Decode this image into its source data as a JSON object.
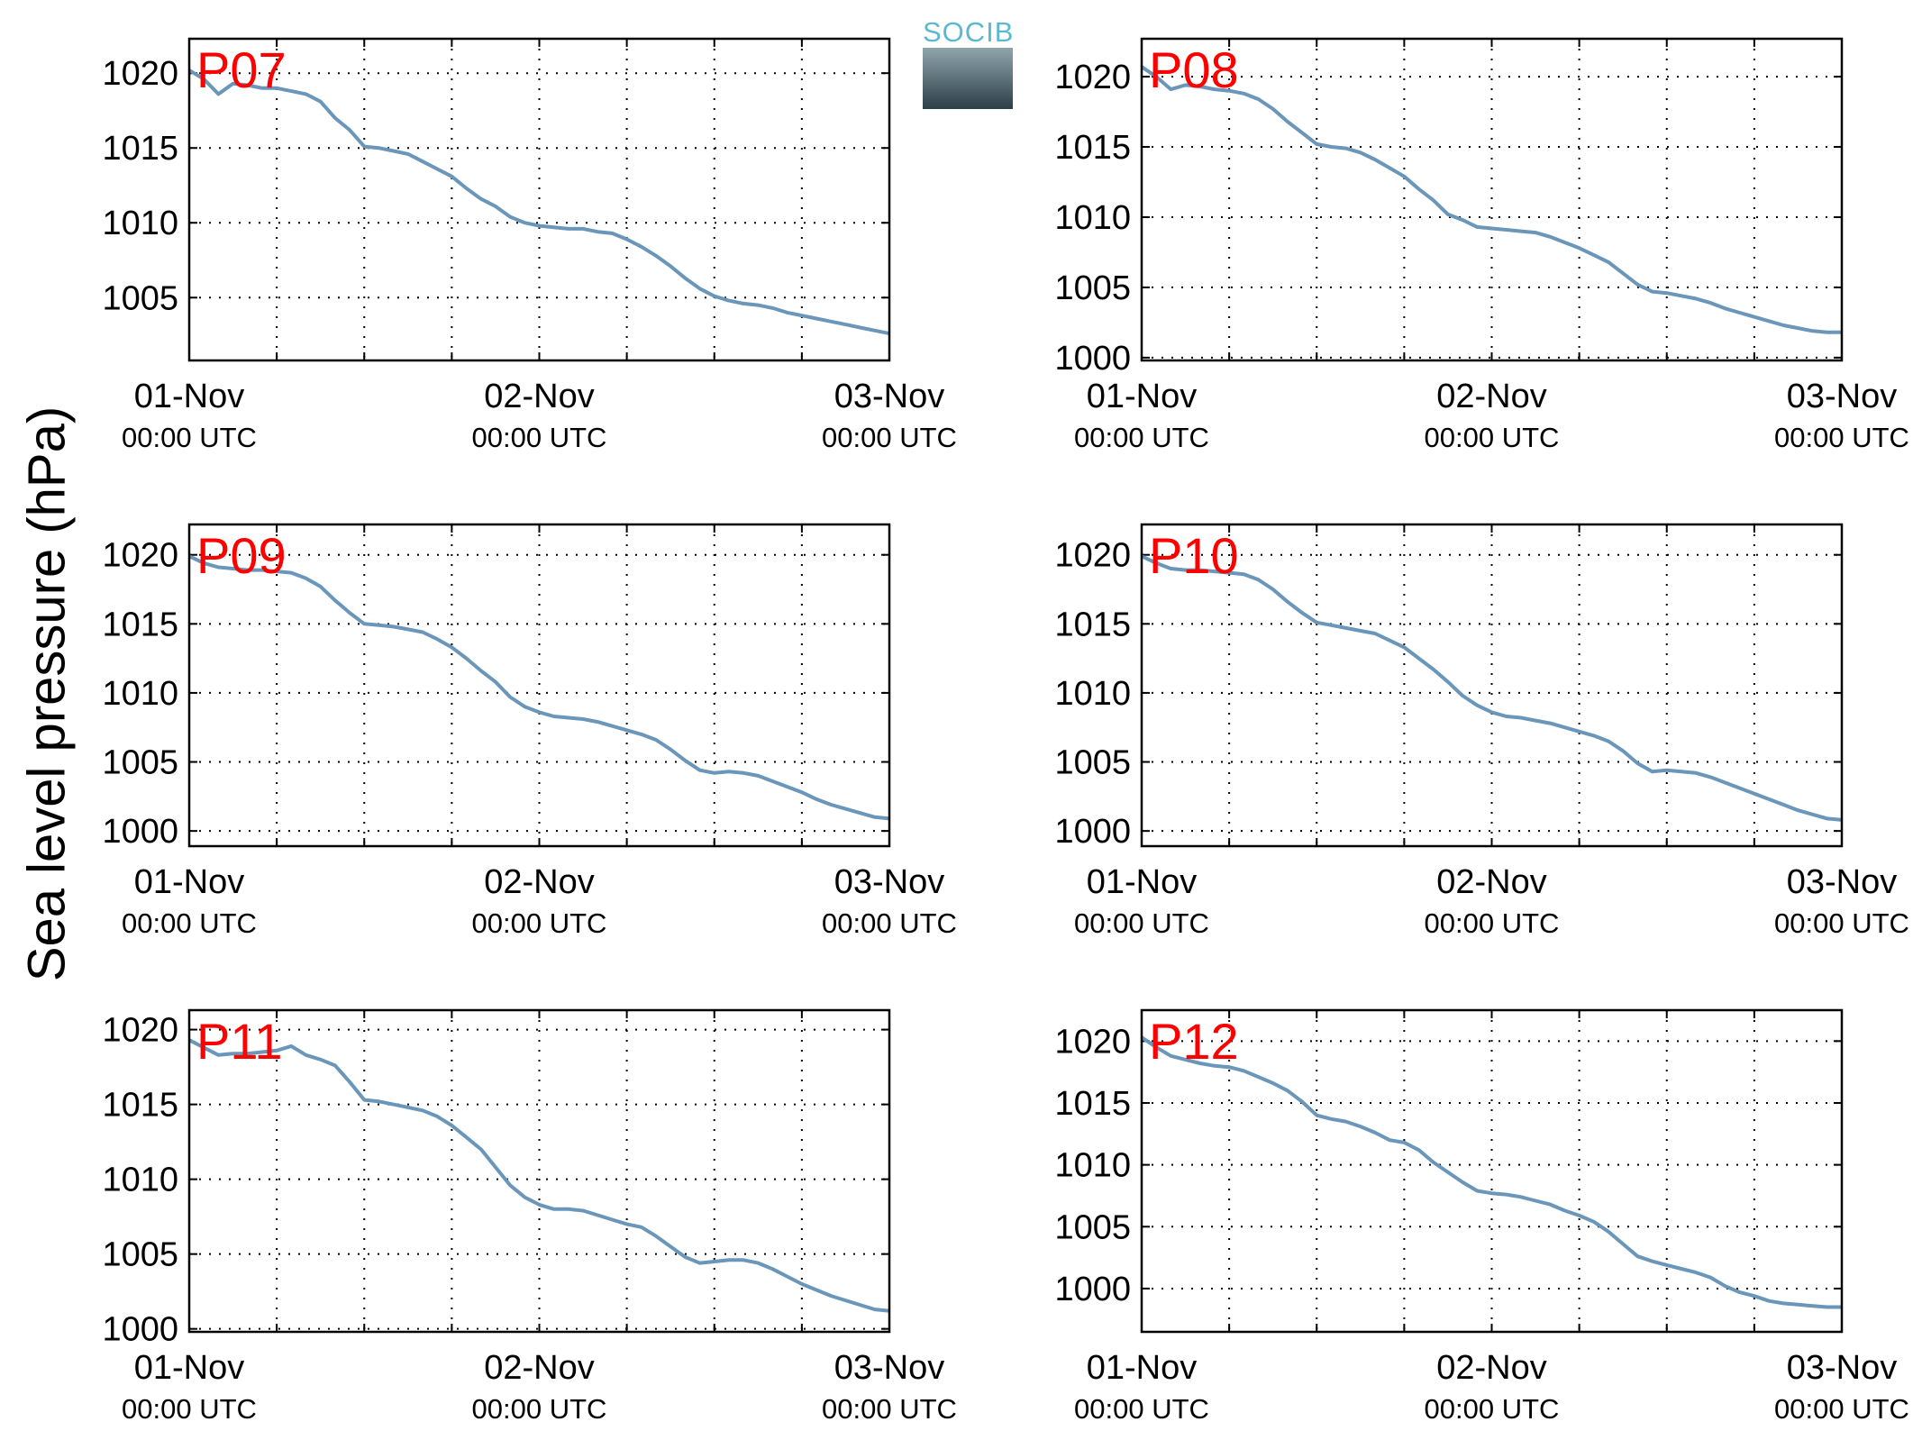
{
  "figure": {
    "ylabel": "Sea level pressure (hPa)",
    "logo_text": "SOCIB",
    "colors": {
      "line": "#6a96ba",
      "station_label": "#ff0000",
      "axis": "#000000",
      "grid": "#000000"
    }
  },
  "chart_data": [
    {
      "type": "line",
      "title": "P07",
      "xlabel": "",
      "ylabel": "",
      "x_ticks": [
        {
          "major": "01-Nov",
          "minor": "00:00 UTC"
        },
        {
          "major": "02-Nov",
          "minor": "00:00 UTC"
        },
        {
          "major": "03-Nov",
          "minor": "00:00 UTC"
        }
      ],
      "xlim": [
        0,
        48
      ],
      "ylim": [
        1000.8,
        1022.3
      ],
      "yticks": [
        1005,
        1010,
        1015,
        1020
      ],
      "grid": true,
      "series": [
        {
          "x": [
            0,
            1,
            2,
            3,
            4,
            5,
            6,
            7,
            8,
            9,
            10,
            11,
            12,
            13,
            14,
            15,
            16,
            17,
            18,
            19,
            20,
            21,
            22,
            23,
            24,
            25,
            26,
            27,
            28,
            29,
            30,
            31,
            32,
            33,
            34,
            35,
            36,
            37,
            38,
            39,
            40,
            41,
            42,
            43,
            44,
            45,
            46,
            47,
            48
          ],
          "y": [
            1020.2,
            1019.6,
            1018.6,
            1019.3,
            1019.2,
            1019.0,
            1019.0,
            1018.8,
            1018.6,
            1018.1,
            1017.0,
            1016.2,
            1015.1,
            1015.0,
            1014.8,
            1014.6,
            1014.1,
            1013.6,
            1013.1,
            1012.3,
            1011.6,
            1011.1,
            1010.4,
            1010.0,
            1009.8,
            1009.7,
            1009.6,
            1009.6,
            1009.4,
            1009.3,
            1008.9,
            1008.4,
            1007.8,
            1007.1,
            1006.3,
            1005.6,
            1005.1,
            1004.8,
            1004.6,
            1004.5,
            1004.3,
            1004.0,
            1003.8,
            1003.6,
            1003.4,
            1003.2,
            1003.0,
            1002.8,
            1002.6
          ]
        }
      ]
    },
    {
      "type": "line",
      "title": "P08",
      "xlabel": "",
      "ylabel": "",
      "x_ticks": [
        {
          "major": "01-Nov",
          "minor": "00:00 UTC"
        },
        {
          "major": "02-Nov",
          "minor": "00:00 UTC"
        },
        {
          "major": "03-Nov",
          "minor": "00:00 UTC"
        }
      ],
      "xlim": [
        0,
        48
      ],
      "ylim": [
        999.8,
        1022.7
      ],
      "yticks": [
        1000,
        1005,
        1010,
        1015,
        1020
      ],
      "grid": true,
      "series": [
        {
          "x": [
            0,
            1,
            2,
            3,
            4,
            5,
            6,
            7,
            8,
            9,
            10,
            11,
            12,
            13,
            14,
            15,
            16,
            17,
            18,
            19,
            20,
            21,
            22,
            23,
            24,
            25,
            26,
            27,
            28,
            29,
            30,
            31,
            32,
            33,
            34,
            35,
            36,
            37,
            38,
            39,
            40,
            41,
            42,
            43,
            44,
            45,
            46,
            47,
            48
          ],
          "y": [
            1020.7,
            1020.0,
            1019.1,
            1019.4,
            1019.3,
            1019.1,
            1019.0,
            1018.8,
            1018.4,
            1017.7,
            1016.8,
            1016.0,
            1015.2,
            1015.0,
            1014.9,
            1014.6,
            1014.1,
            1013.5,
            1012.9,
            1012.0,
            1011.2,
            1010.2,
            1009.8,
            1009.3,
            1009.2,
            1009.1,
            1009.0,
            1008.9,
            1008.6,
            1008.2,
            1007.8,
            1007.3,
            1006.8,
            1006.0,
            1005.2,
            1004.7,
            1004.6,
            1004.4,
            1004.2,
            1003.9,
            1003.5,
            1003.2,
            1002.9,
            1002.6,
            1002.3,
            1002.1,
            1001.9,
            1001.8,
            1001.8
          ]
        }
      ]
    },
    {
      "type": "line",
      "title": "P09",
      "xlabel": "",
      "ylabel": "",
      "x_ticks": [
        {
          "major": "01-Nov",
          "minor": "00:00 UTC"
        },
        {
          "major": "02-Nov",
          "minor": "00:00 UTC"
        },
        {
          "major": "03-Nov",
          "minor": "00:00 UTC"
        }
      ],
      "xlim": [
        0,
        48
      ],
      "ylim": [
        998.9,
        1022.2
      ],
      "yticks": [
        1000,
        1005,
        1010,
        1015,
        1020
      ],
      "grid": true,
      "series": [
        {
          "x": [
            0,
            1,
            2,
            3,
            4,
            5,
            6,
            7,
            8,
            9,
            10,
            11,
            12,
            13,
            14,
            15,
            16,
            17,
            18,
            19,
            20,
            21,
            22,
            23,
            24,
            25,
            26,
            27,
            28,
            29,
            30,
            31,
            32,
            33,
            34,
            35,
            36,
            37,
            38,
            39,
            40,
            41,
            42,
            43,
            44,
            45,
            46,
            47,
            48
          ],
          "y": [
            1019.9,
            1019.4,
            1019.1,
            1019.0,
            1018.9,
            1018.9,
            1018.8,
            1018.7,
            1018.3,
            1017.7,
            1016.7,
            1015.8,
            1015.0,
            1014.9,
            1014.8,
            1014.6,
            1014.4,
            1013.9,
            1013.3,
            1012.5,
            1011.6,
            1010.8,
            1009.7,
            1009.0,
            1008.6,
            1008.3,
            1008.2,
            1008.1,
            1007.9,
            1007.6,
            1007.3,
            1007.0,
            1006.6,
            1005.9,
            1005.1,
            1004.4,
            1004.2,
            1004.3,
            1004.2,
            1004.0,
            1003.6,
            1003.2,
            1002.8,
            1002.3,
            1001.9,
            1001.6,
            1001.3,
            1001.0,
            1000.9
          ]
        }
      ]
    },
    {
      "type": "line",
      "title": "P10",
      "xlabel": "",
      "ylabel": "",
      "x_ticks": [
        {
          "major": "01-Nov",
          "minor": "00:00 UTC"
        },
        {
          "major": "02-Nov",
          "minor": "00:00 UTC"
        },
        {
          "major": "03-Nov",
          "minor": "00:00 UTC"
        }
      ],
      "xlim": [
        0,
        48
      ],
      "ylim": [
        998.9,
        1022.2
      ],
      "yticks": [
        1000,
        1005,
        1010,
        1015,
        1020
      ],
      "grid": true,
      "series": [
        {
          "x": [
            0,
            1,
            2,
            3,
            4,
            5,
            6,
            7,
            8,
            9,
            10,
            11,
            12,
            13,
            14,
            15,
            16,
            17,
            18,
            19,
            20,
            21,
            22,
            23,
            24,
            25,
            26,
            27,
            28,
            29,
            30,
            31,
            32,
            33,
            34,
            35,
            36,
            37,
            38,
            39,
            40,
            41,
            42,
            43,
            44,
            45,
            46,
            47,
            48
          ],
          "y": [
            1019.9,
            1019.4,
            1019.0,
            1018.9,
            1018.9,
            1018.8,
            1018.7,
            1018.6,
            1018.2,
            1017.5,
            1016.6,
            1015.8,
            1015.1,
            1014.9,
            1014.7,
            1014.5,
            1014.3,
            1013.8,
            1013.3,
            1012.5,
            1011.7,
            1010.8,
            1009.8,
            1009.1,
            1008.6,
            1008.3,
            1008.2,
            1008.0,
            1007.8,
            1007.5,
            1007.2,
            1006.9,
            1006.5,
            1005.8,
            1004.9,
            1004.3,
            1004.4,
            1004.3,
            1004.2,
            1003.9,
            1003.5,
            1003.1,
            1002.7,
            1002.3,
            1001.9,
            1001.5,
            1001.2,
            1000.9,
            1000.8
          ]
        }
      ]
    },
    {
      "type": "line",
      "title": "P11",
      "xlabel": "",
      "ylabel": "",
      "x_ticks": [
        {
          "major": "01-Nov",
          "minor": "00:00 UTC"
        },
        {
          "major": "02-Nov",
          "minor": "00:00 UTC"
        },
        {
          "major": "03-Nov",
          "minor": "00:00 UTC"
        }
      ],
      "xlim": [
        0,
        48
      ],
      "ylim": [
        999.8,
        1021.3
      ],
      "yticks": [
        1000,
        1005,
        1010,
        1015,
        1020
      ],
      "grid": true,
      "series": [
        {
          "x": [
            0,
            1,
            2,
            3,
            4,
            5,
            6,
            7,
            8,
            9,
            10,
            11,
            12,
            13,
            14,
            15,
            16,
            17,
            18,
            19,
            20,
            21,
            22,
            23,
            24,
            25,
            26,
            27,
            28,
            29,
            30,
            31,
            32,
            33,
            34,
            35,
            36,
            37,
            38,
            39,
            40,
            41,
            42,
            43,
            44,
            45,
            46,
            47,
            48
          ],
          "y": [
            1019.3,
            1018.8,
            1018.3,
            1018.4,
            1018.4,
            1018.5,
            1018.6,
            1018.9,
            1018.3,
            1018.0,
            1017.6,
            1016.5,
            1015.3,
            1015.2,
            1015.0,
            1014.8,
            1014.6,
            1014.2,
            1013.6,
            1012.8,
            1012.0,
            1010.8,
            1009.6,
            1008.8,
            1008.3,
            1008.0,
            1008.0,
            1007.9,
            1007.6,
            1007.3,
            1007.0,
            1006.8,
            1006.2,
            1005.5,
            1004.8,
            1004.4,
            1004.5,
            1004.6,
            1004.6,
            1004.4,
            1004.0,
            1003.5,
            1003.0,
            1002.6,
            1002.2,
            1001.9,
            1001.6,
            1001.3,
            1001.2
          ]
        }
      ]
    },
    {
      "type": "line",
      "title": "P12",
      "xlabel": "",
      "ylabel": "",
      "x_ticks": [
        {
          "major": "01-Nov",
          "minor": "00:00 UTC"
        },
        {
          "major": "02-Nov",
          "minor": "00:00 UTC"
        },
        {
          "major": "03-Nov",
          "minor": "00:00 UTC"
        }
      ],
      "xlim": [
        0,
        48
      ],
      "ylim": [
        996.5,
        1022.5
      ],
      "yticks": [
        1000,
        1005,
        1010,
        1015,
        1020
      ],
      "grid": true,
      "series": [
        {
          "x": [
            0,
            1,
            2,
            3,
            4,
            5,
            6,
            7,
            8,
            9,
            10,
            11,
            12,
            13,
            14,
            15,
            16,
            17,
            18,
            19,
            20,
            21,
            22,
            23,
            24,
            25,
            26,
            27,
            28,
            29,
            30,
            31,
            32,
            33,
            34,
            35,
            36,
            37,
            38,
            39,
            40,
            41,
            42,
            43,
            44,
            45,
            46,
            47,
            48
          ],
          "y": [
            1020.3,
            1019.5,
            1018.8,
            1018.5,
            1018.2,
            1018.0,
            1017.9,
            1017.6,
            1017.1,
            1016.6,
            1016.0,
            1015.1,
            1014.0,
            1013.7,
            1013.5,
            1013.1,
            1012.6,
            1012.0,
            1011.8,
            1011.2,
            1010.2,
            1009.4,
            1008.6,
            1007.9,
            1007.7,
            1007.6,
            1007.4,
            1007.1,
            1006.8,
            1006.3,
            1005.9,
            1005.4,
            1004.6,
            1003.6,
            1002.6,
            1002.2,
            1001.9,
            1001.6,
            1001.3,
            1000.9,
            1000.2,
            999.7,
            999.4,
            999.0,
            998.8,
            998.7,
            998.6,
            998.5,
            998.5
          ]
        }
      ]
    }
  ]
}
